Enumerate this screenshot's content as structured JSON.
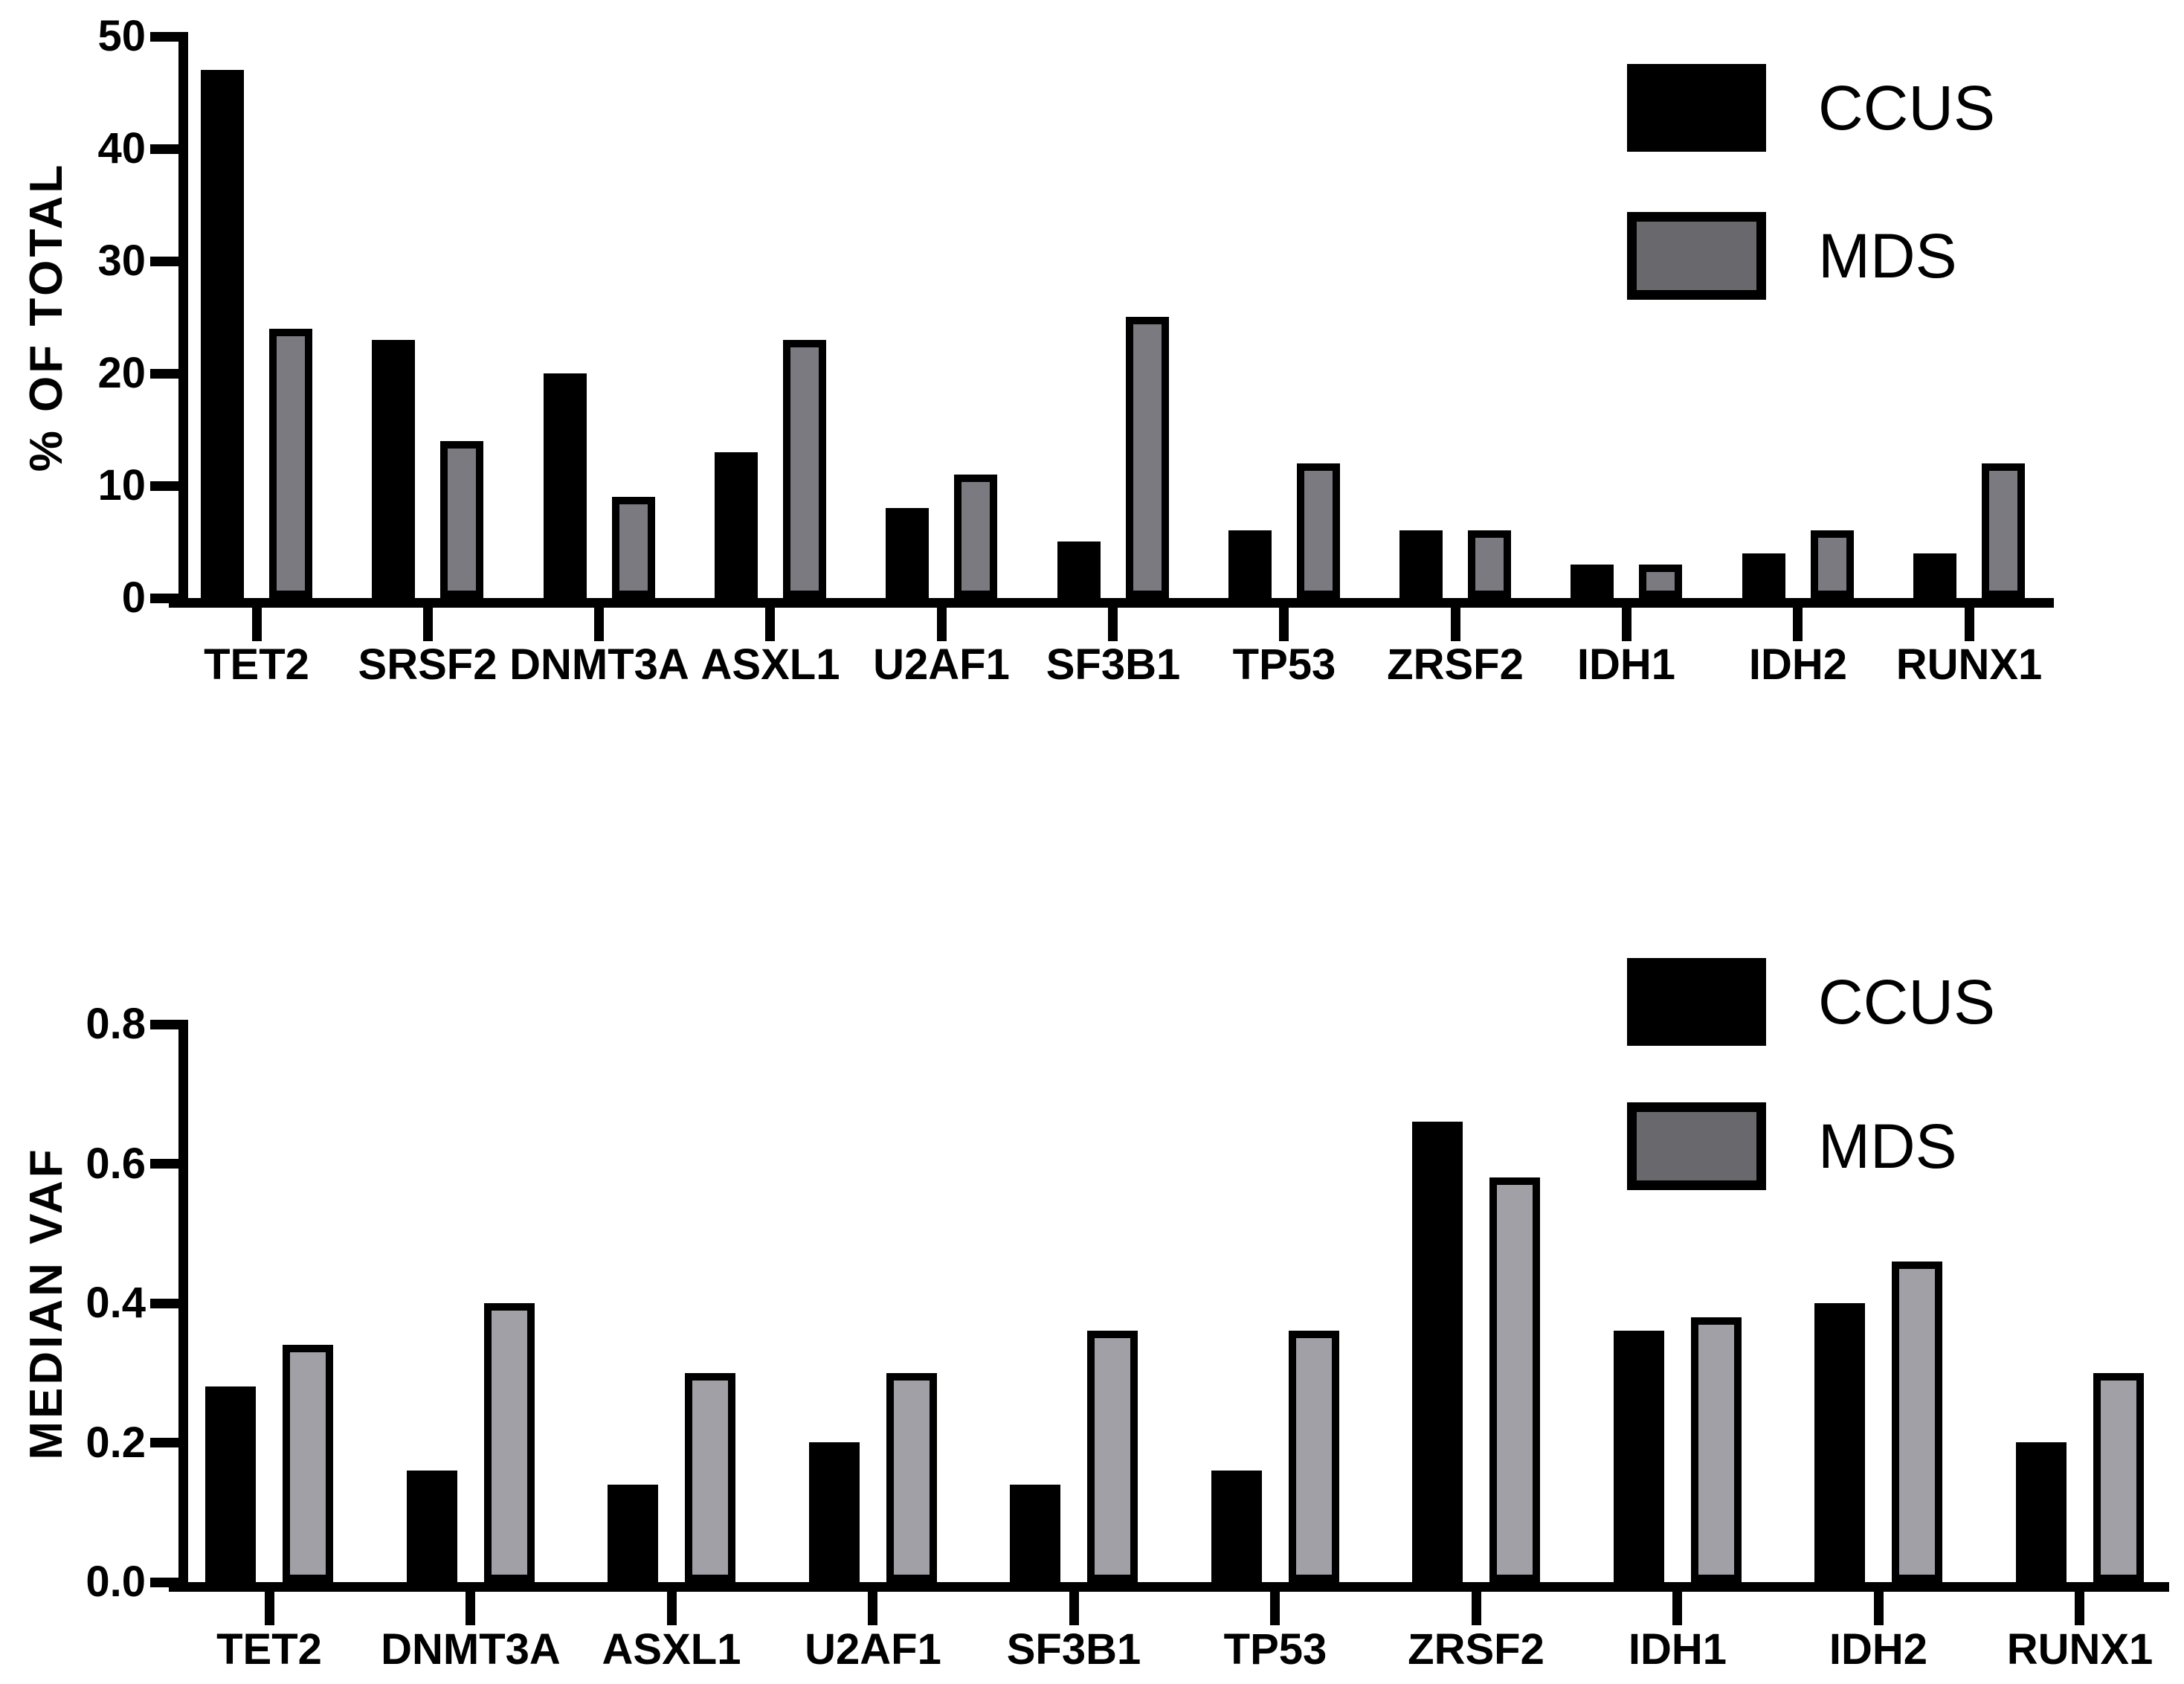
{
  "figure_type": "two-panel grouped bar figure",
  "chart_data": [
    {
      "type": "bar",
      "title": "",
      "xlabel": "",
      "ylabel": "% OF TOTAL",
      "ylim": [
        0,
        50
      ],
      "yticks": [
        "0",
        "10",
        "20",
        "30",
        "40",
        "50"
      ],
      "grid": false,
      "legend_position": "top-right",
      "categories": [
        "TET2",
        "SRSF2",
        "DNMT3A",
        "ASXL1",
        "U2AF1",
        "SF3B1",
        "TP53",
        "ZRSF2",
        "IDH1",
        "IDH2",
        "RUNX1"
      ],
      "series": [
        {
          "name": "CCUS",
          "color": "#000000",
          "values": [
            47,
            23,
            20,
            13,
            8,
            5,
            6,
            6,
            3,
            4,
            4
          ]
        },
        {
          "name": "MDS",
          "color": "#7b7a80",
          "values": [
            24,
            14,
            9,
            23,
            11,
            25,
            12,
            6,
            3,
            6,
            12
          ]
        }
      ]
    },
    {
      "type": "bar",
      "title": "",
      "xlabel": "",
      "ylabel": "MEDIAN VAF",
      "ylim": [
        0,
        0.8
      ],
      "yticks": [
        "0.0",
        "0.2",
        "0.4",
        "0.6",
        "0.8"
      ],
      "grid": false,
      "legend_position": "top-right",
      "categories": [
        "TET2",
        "DNMT3A",
        "ASXL1",
        "U2AF1",
        "SF3B1",
        "TP53",
        "ZRSF2",
        "IDH1",
        "IDH2",
        "RUNX1"
      ],
      "series": [
        {
          "name": "CCUS",
          "color": "#000000",
          "values": [
            0.28,
            0.16,
            0.14,
            0.2,
            0.14,
            0.16,
            0.66,
            0.36,
            0.4,
            0.2
          ]
        },
        {
          "name": "MDS",
          "color": "#a1a0a6",
          "values": [
            0.34,
            0.4,
            0.3,
            0.3,
            0.36,
            0.36,
            0.58,
            0.38,
            0.46,
            0.3
          ]
        }
      ]
    }
  ],
  "colors": {
    "background": "#ffffff",
    "axis": "#000000",
    "ccus_fill": "#000000",
    "mds_fill_top_chart": "#7b7a80",
    "mds_fill_bottom_chart": "#a1a0a6",
    "legend_mds_fill": "#69686d",
    "bar_border": "#000000"
  }
}
